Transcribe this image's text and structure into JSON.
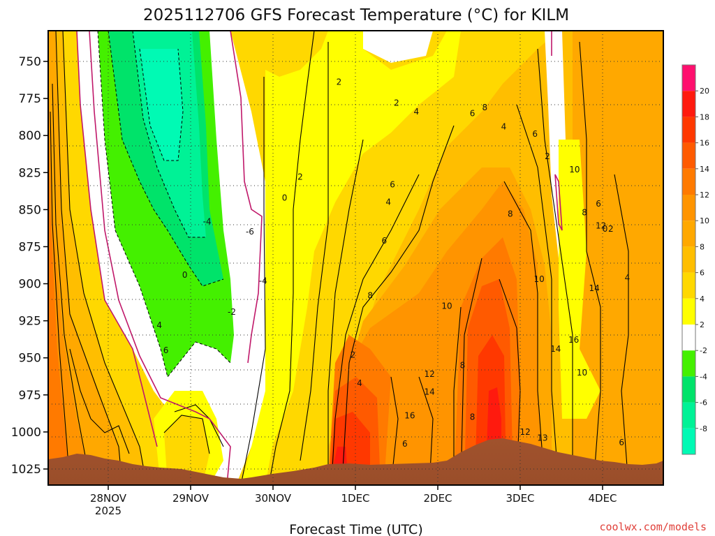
{
  "chart_data": {
    "type": "heatmap",
    "title": "2025112706 GFS Forecast Temperature (°C) for KILM",
    "xlabel": "Forecast Time (UTC)",
    "x_ticks": [
      "28NOV",
      "29NOV",
      "30NOV",
      "1DEC",
      "2DEC",
      "3DEC",
      "4DEC"
    ],
    "x_tick_sublabel": "2025",
    "y_ticks": [
      "750",
      "775",
      "800",
      "825",
      "850",
      "875",
      "900",
      "925",
      "950",
      "975",
      "1000",
      "1025"
    ],
    "y_range": [
      730,
      1040
    ],
    "y_unit": "hPa",
    "colorbar": {
      "labels": [
        "20",
        "18",
        "16",
        "14",
        "12",
        "10",
        "8",
        "6",
        "4",
        "2",
        "-2",
        "-4",
        "-6",
        "-8"
      ],
      "bands": [
        {
          "min": 20,
          "max": 22,
          "color": "#ff0f6e"
        },
        {
          "min": 18,
          "max": 20,
          "color": "#ff1a0e"
        },
        {
          "min": 16,
          "max": 18,
          "color": "#ff3800"
        },
        {
          "min": 14,
          "max": 16,
          "color": "#ff5a00"
        },
        {
          "min": 12,
          "max": 14,
          "color": "#ff7a00"
        },
        {
          "min": 10,
          "max": 12,
          "color": "#ff9400"
        },
        {
          "min": 8,
          "max": 10,
          "color": "#ffa800"
        },
        {
          "min": 6,
          "max": 8,
          "color": "#ffbe00"
        },
        {
          "min": 4,
          "max": 6,
          "color": "#ffd800"
        },
        {
          "min": 2,
          "max": 4,
          "color": "#ffff00"
        },
        {
          "min": -2,
          "max": 2,
          "color": "#ffffff"
        },
        {
          "min": -4,
          "max": -2,
          "color": "#44f000"
        },
        {
          "min": -6,
          "max": -4,
          "color": "#00e36a"
        },
        {
          "min": -8,
          "max": -6,
          "color": "#00f296"
        },
        {
          "min": -10,
          "max": -8,
          "color": "#00fab4"
        }
      ]
    },
    "contour_labels": [
      {
        "text": "2",
        "time": 2.8,
        "p": 764
      },
      {
        "text": "2",
        "time": 3.5,
        "p": 778
      },
      {
        "text": "2",
        "time": 2.33,
        "p": 828
      },
      {
        "text": "2",
        "time": 2.97,
        "p": 948
      },
      {
        "text": "2",
        "time": 5.33,
        "p": 814
      },
      {
        "text": "0",
        "time": 2.14,
        "p": 842
      },
      {
        "text": "0",
        "time": 0.93,
        "p": 894
      },
      {
        "text": "0",
        "time": 6.03,
        "p": 863
      },
      {
        "text": "2",
        "time": 6.1,
        "p": 863
      },
      {
        "text": "-4",
        "time": 1.2,
        "p": 858
      },
      {
        "text": "-6",
        "time": 1.72,
        "p": 865
      },
      {
        "text": "-4",
        "time": 1.88,
        "p": 898
      },
      {
        "text": "-2",
        "time": 1.5,
        "p": 919
      },
      {
        "text": "4",
        "time": 0.62,
        "p": 928
      },
      {
        "text": "6",
        "time": 0.7,
        "p": 945
      },
      {
        "text": "4",
        "time": 3.74,
        "p": 784
      },
      {
        "text": "4",
        "time": 3.4,
        "p": 845
      },
      {
        "text": "4",
        "time": 3.05,
        "p": 967
      },
      {
        "text": "4",
        "time": 4.8,
        "p": 794
      },
      {
        "text": "4",
        "time": 6.3,
        "p": 896
      },
      {
        "text": "4",
        "time": 6.9,
        "p": 914
      },
      {
        "text": "4",
        "time": 6.84,
        "p": 952
      },
      {
        "text": "6",
        "time": 3.35,
        "p": 871
      },
      {
        "text": "6",
        "time": 3.45,
        "p": 833
      },
      {
        "text": "6",
        "time": 4.42,
        "p": 785
      },
      {
        "text": "6",
        "time": 5.18,
        "p": 799
      },
      {
        "text": "6",
        "time": 5.95,
        "p": 846
      },
      {
        "text": "6",
        "time": 7.35,
        "p": 829
      },
      {
        "text": "6",
        "time": 7.53,
        "p": 925
      },
      {
        "text": "6",
        "time": 3.6,
        "p": 1008
      },
      {
        "text": "6",
        "time": 6.23,
        "p": 1007
      },
      {
        "text": "8",
        "time": 4.57,
        "p": 781
      },
      {
        "text": "8",
        "time": 3.18,
        "p": 908
      },
      {
        "text": "8",
        "time": 4.88,
        "p": 853
      },
      {
        "text": "8",
        "time": 5.78,
        "p": 852
      },
      {
        "text": "8",
        "time": 4.3,
        "p": 955
      },
      {
        "text": "8",
        "time": 4.42,
        "p": 990
      },
      {
        "text": "8",
        "time": 7.28,
        "p": 997
      },
      {
        "text": "10",
        "time": 4.11,
        "p": 915
      },
      {
        "text": "10",
        "time": 5.23,
        "p": 897
      },
      {
        "text": "10",
        "time": 5.66,
        "p": 823
      },
      {
        "text": "10",
        "time": 5.75,
        "p": 960
      },
      {
        "text": "12",
        "time": 3.9,
        "p": 961
      },
      {
        "text": "12",
        "time": 5.98,
        "p": 861
      },
      {
        "text": "12",
        "time": 5.06,
        "p": 1000
      },
      {
        "text": "13",
        "time": 5.27,
        "p": 1004
      },
      {
        "text": "14",
        "time": 3.9,
        "p": 973
      },
      {
        "text": "14",
        "time": 5.9,
        "p": 903
      },
      {
        "text": "14",
        "time": 5.43,
        "p": 944
      },
      {
        "text": "16",
        "time": 3.66,
        "p": 989
      },
      {
        "text": "16",
        "time": 5.65,
        "p": 938
      }
    ]
  },
  "credit": "coolwx.com/models"
}
